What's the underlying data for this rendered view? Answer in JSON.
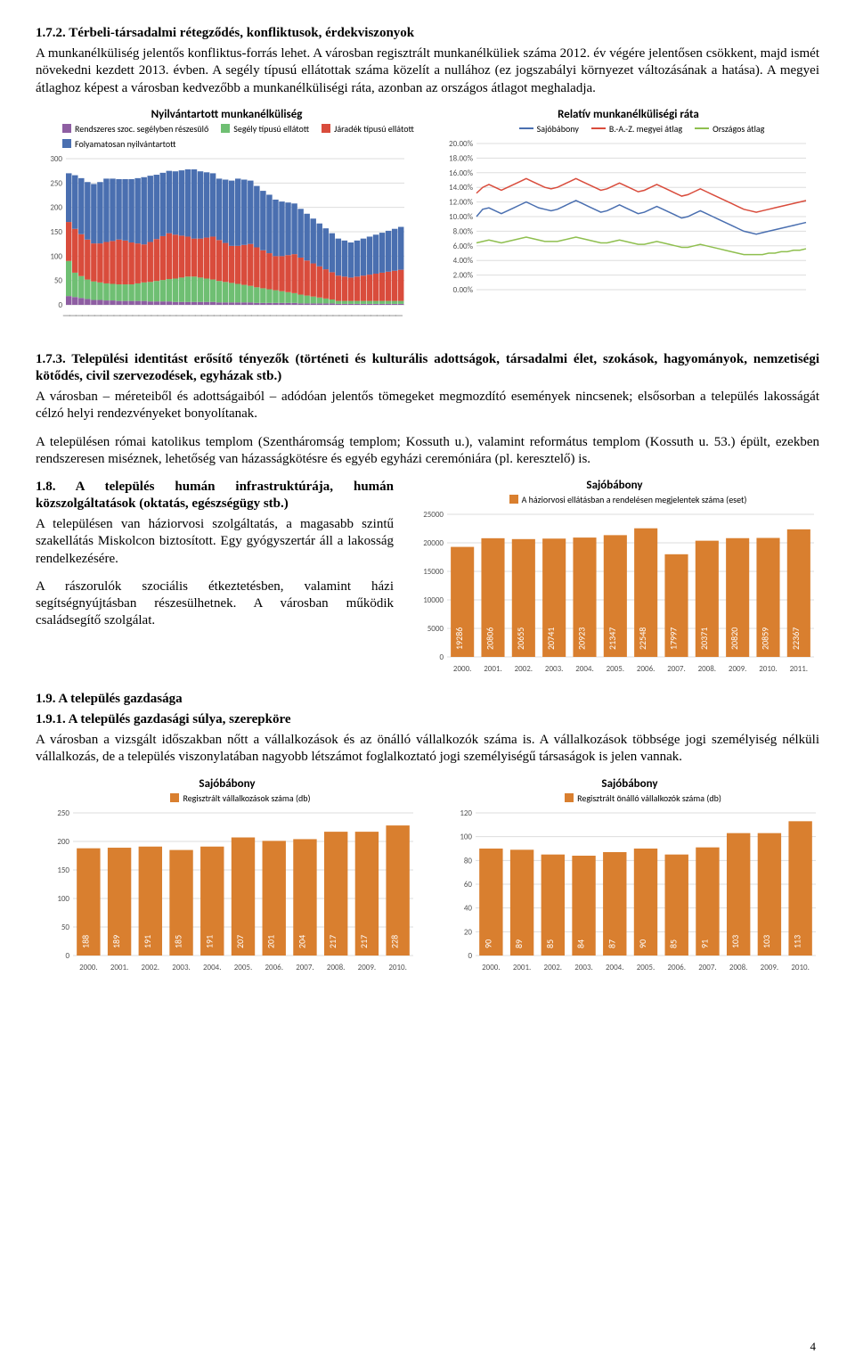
{
  "section_172": {
    "heading": "1.7.2. Térbeli-társadalmi rétegződés, konfliktusok, érdekviszonyok",
    "para": "A munkanélküliség jelentős konfliktus-forrás lehet. A városban regisztrált munkanélküliek száma 2012. év végére jelentősen csökkent, majd ismét növekedni kezdett 2013. évben. A segély típusú ellátottak száma közelít a nullához (ez jogszabályi környezet változásának a hatása). A megyei átlaghoz képest a városban kedvezőbb a munkanélküliségi ráta, azonban az országos átlagot meghaladja."
  },
  "chart_unemp": {
    "type": "stacked_area",
    "title": "Nyilvántartott munkanélküliség",
    "legend": [
      {
        "label": "Rendszeres szoc. segélyben részesülő",
        "color": "#8e5ea2"
      },
      {
        "label": "Segély típusú ellátott",
        "color": "#6fbf73"
      },
      {
        "label": "Járadék típusú ellátott",
        "color": "#d94c3c"
      },
      {
        "label": "Folyamatosan nyilvántartott",
        "color": "#4a6fb0"
      }
    ],
    "ymax": 300,
    "ytick": 50,
    "background": "#ffffff",
    "series_colors": [
      "#8e5ea2",
      "#6fbf73",
      "#d94c3c",
      "#4a6fb0"
    ],
    "n": 54,
    "s1": [
      18,
      16,
      14,
      12,
      10,
      10,
      9,
      9,
      8,
      8,
      8,
      8,
      8,
      7,
      7,
      7,
      7,
      6,
      6,
      6,
      6,
      6,
      6,
      6,
      5,
      5,
      5,
      5,
      5,
      5,
      4,
      4,
      4,
      4,
      4,
      4,
      4,
      3,
      3,
      3,
      3,
      3,
      3,
      2,
      2,
      2,
      2,
      2,
      2,
      2,
      2,
      2,
      2,
      2
    ],
    "s2": [
      72,
      50,
      45,
      40,
      38,
      36,
      35,
      34,
      34,
      34,
      34,
      36,
      38,
      40,
      42,
      44,
      46,
      48,
      50,
      52,
      52,
      50,
      48,
      46,
      44,
      42,
      40,
      38,
      36,
      34,
      32,
      30,
      28,
      26,
      24,
      22,
      20,
      18,
      16,
      14,
      12,
      10,
      8,
      6,
      6,
      6,
      6,
      6,
      6,
      6,
      6,
      6,
      6,
      6
    ],
    "s3": [
      80,
      90,
      86,
      82,
      78,
      80,
      85,
      88,
      92,
      90,
      86,
      82,
      78,
      82,
      86,
      90,
      94,
      90,
      86,
      82,
      78,
      80,
      84,
      88,
      84,
      80,
      76,
      78,
      82,
      86,
      82,
      78,
      74,
      70,
      72,
      76,
      80,
      76,
      72,
      68,
      64,
      60,
      56,
      52,
      50,
      48,
      50,
      52,
      54,
      56,
      58,
      60,
      62,
      64
    ],
    "s4": [
      100,
      110,
      115,
      118,
      122,
      126,
      130,
      128,
      124,
      126,
      130,
      134,
      138,
      136,
      132,
      130,
      128,
      130,
      134,
      138,
      142,
      138,
      134,
      130,
      126,
      130,
      134,
      138,
      134,
      130,
      126,
      122,
      120,
      116,
      112,
      108,
      104,
      100,
      96,
      92,
      88,
      84,
      80,
      76,
      74,
      72,
      74,
      76,
      78,
      80,
      82,
      84,
      86,
      88
    ]
  },
  "chart_rate": {
    "type": "line",
    "title": "Relatív munkanélküliségi ráta",
    "legend": [
      {
        "label": "Sajóbábony",
        "color": "#4a6fb0"
      },
      {
        "label": "B.-A.-Z. megyei átlag",
        "color": "#d94c3c"
      },
      {
        "label": "Országos átlag",
        "color": "#8fbf4f"
      }
    ],
    "ymax": 20,
    "ytick": 2,
    "yformat": "pct",
    "n": 54,
    "sajobabony": [
      10.0,
      11.0,
      11.2,
      10.8,
      10.4,
      10.8,
      11.2,
      11.6,
      12.0,
      11.6,
      11.2,
      11.0,
      10.8,
      11.0,
      11.4,
      11.8,
      12.2,
      11.8,
      11.4,
      11.0,
      10.6,
      10.8,
      11.2,
      11.6,
      11.2,
      10.8,
      10.4,
      10.6,
      11.0,
      11.4,
      11.0,
      10.6,
      10.2,
      9.8,
      10.0,
      10.4,
      10.8,
      10.4,
      10.0,
      9.6,
      9.2,
      8.8,
      8.4,
      8.0,
      7.8,
      7.6,
      7.8,
      8.0,
      8.2,
      8.4,
      8.6,
      8.8,
      9.0,
      9.2
    ],
    "megye": [
      13.2,
      14.0,
      14.4,
      14.0,
      13.6,
      14.0,
      14.4,
      14.8,
      15.2,
      14.8,
      14.4,
      14.0,
      13.8,
      14.0,
      14.4,
      14.8,
      15.2,
      14.8,
      14.4,
      14.0,
      13.6,
      13.8,
      14.2,
      14.6,
      14.2,
      13.8,
      13.4,
      13.6,
      14.0,
      14.4,
      14.0,
      13.6,
      13.2,
      12.8,
      13.0,
      13.4,
      13.8,
      13.4,
      13.0,
      12.6,
      12.2,
      11.8,
      11.4,
      11.0,
      10.8,
      10.6,
      10.8,
      11.0,
      11.2,
      11.4,
      11.6,
      11.8,
      12.0,
      12.2
    ],
    "orszag": [
      6.4,
      6.6,
      6.8,
      6.6,
      6.4,
      6.6,
      6.8,
      7.0,
      7.2,
      7.0,
      6.8,
      6.6,
      6.6,
      6.6,
      6.8,
      7.0,
      7.2,
      7.0,
      6.8,
      6.6,
      6.4,
      6.4,
      6.6,
      6.8,
      6.6,
      6.4,
      6.2,
      6.2,
      6.4,
      6.6,
      6.4,
      6.2,
      6.0,
      5.8,
      5.8,
      6.0,
      6.2,
      6.0,
      5.8,
      5.6,
      5.4,
      5.2,
      5.0,
      4.8,
      4.8,
      4.8,
      4.8,
      5.0,
      5.0,
      5.2,
      5.2,
      5.4,
      5.4,
      5.6
    ]
  },
  "section_173": {
    "heading": "1.7.3. Települési identitást erősítő tényezők (történeti és kulturális adottságok, társadalmi élet, szokások, hagyományok, nemzetiségi kötődés, civil szervezodések, egyházak stb.)",
    "p1": "A városban – méreteiből és adottságaiból – adódóan jelentős tömegeket megmozdító események nincsenek; elsősorban a település lakosságát célzó helyi rendezvényeket bonyolítanak.",
    "p2": "A településen római katolikus templom (Szentháromság templom; Kossuth u.), valamint református templom (Kossuth u. 53.) épült, ezekben rendszeresen miséznek, lehetőség van házasságkötésre és egyéb egyházi ceremóniára (pl. keresztelő) is."
  },
  "section_18": {
    "heading": "1.8. A település humán infrastruktúrája, humán közszolgáltatások (oktatás, egészségügy stb.)",
    "p1": "A településen van háziorvosi szolgáltatás, a magasabb szintű szakellátás Miskolcon biztosított. Egy gyógyszertár áll a lakosság rendelkezésére.",
    "p2": "A rászorulók szociális étkeztetésben, valamint házi segítségnyújtásban részesülhetnek. A városban működik családsegítő szolgálat."
  },
  "chart_gp": {
    "type": "bar",
    "title": "Sajóbábony",
    "legend": "A háziorvosi ellátásban a rendelésen megjelentek száma (eset)",
    "color": "#d97f2f",
    "labelcolor": "#ffffff",
    "ymax": 25000,
    "ytick": 5000,
    "years": [
      "2000.",
      "2001.",
      "2002.",
      "2003.",
      "2004.",
      "2005.",
      "2006.",
      "2007.",
      "2008.",
      "2009.",
      "2010.",
      "2011."
    ],
    "values": [
      19286,
      20806,
      20655,
      20741,
      20923,
      21347,
      22548,
      17997,
      20371,
      20820,
      20859,
      22367
    ]
  },
  "section_19": {
    "h1": "1.9. A település gazdasága",
    "h2": "1.9.1. A település gazdasági súlya, szerepköre",
    "p": "A városban a vizsgált időszakban nőtt a vállalkozások és az önálló vállalkozók száma is. A vállalkozások többsége jogi személyiség nélküli vállalkozás, de a település viszonylatában nagyobb létszámot foglalkoztató jogi személyiségű társaságok is jelen vannak."
  },
  "chart_comp": {
    "type": "bar",
    "title": "Sajóbábony",
    "legend": "Regisztrált vállalkozások száma (db)",
    "color": "#d97f2f",
    "labelcolor": "#ffffff",
    "ymax": 250,
    "ytick": 50,
    "years": [
      "2000.",
      "2001.",
      "2002.",
      "2003.",
      "2004.",
      "2005.",
      "2006.",
      "2007.",
      "2008.",
      "2009.",
      "2010."
    ],
    "values": [
      188,
      189,
      191,
      185,
      191,
      207,
      201,
      204,
      217,
      217,
      228
    ]
  },
  "chart_self": {
    "type": "bar",
    "title": "Sajóbábony",
    "legend": "Regisztrált önálló vállalkozók száma (db)",
    "color": "#d97f2f",
    "labelcolor": "#ffffff",
    "ymax": 120,
    "ytick": 20,
    "years": [
      "2000.",
      "2001.",
      "2002.",
      "2003.",
      "2004.",
      "2005.",
      "2006.",
      "2007.",
      "2008.",
      "2009.",
      "2010."
    ],
    "values": [
      90,
      89,
      85,
      84,
      87,
      90,
      85,
      91,
      103,
      103,
      113
    ]
  },
  "page": "4"
}
